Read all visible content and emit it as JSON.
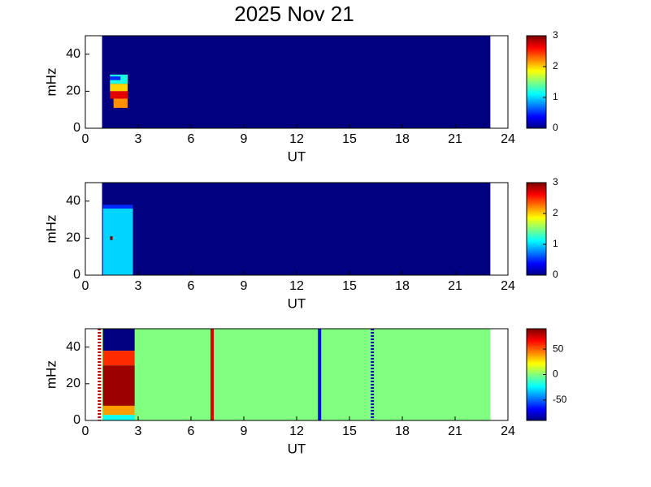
{
  "title": "2025 Nov 21",
  "chart_data": [
    {
      "type": "heatmap",
      "xlabel": "UT",
      "ylabel": "mHz",
      "xlim": [
        0,
        24
      ],
      "xticks": [
        0,
        3,
        6,
        9,
        12,
        15,
        18,
        21,
        24
      ],
      "ylim": [
        0,
        50
      ],
      "yticks": [
        0,
        20,
        40
      ],
      "clim": [
        0,
        3
      ],
      "cticks": [
        0,
        1,
        2,
        3
      ],
      "cells": [
        {
          "x": [
            0.95,
            23
          ],
          "y": [
            0,
            50
          ],
          "value": 0
        },
        {
          "x": [
            1.4,
            2.4
          ],
          "y": [
            24,
            29
          ],
          "value": 1.2
        },
        {
          "x": [
            1.4,
            2.0
          ],
          "y": [
            26,
            28
          ],
          "value": 0.5
        },
        {
          "x": [
            1.4,
            2.4
          ],
          "y": [
            20,
            24
          ],
          "value": 2.0
        },
        {
          "x": [
            1.4,
            2.4
          ],
          "y": [
            16,
            20
          ],
          "value": 2.7
        },
        {
          "x": [
            1.6,
            2.4
          ],
          "y": [
            11,
            16
          ],
          "value": 2.2
        }
      ]
    },
    {
      "type": "heatmap",
      "xlabel": "UT",
      "ylabel": "mHz",
      "xlim": [
        0,
        24
      ],
      "xticks": [
        0,
        3,
        6,
        9,
        12,
        15,
        18,
        21,
        24
      ],
      "ylim": [
        0,
        50
      ],
      "yticks": [
        0,
        20,
        40
      ],
      "clim": [
        0,
        3
      ],
      "cticks": [
        0,
        1,
        2,
        3
      ],
      "cells": [
        {
          "x": [
            0.95,
            23
          ],
          "y": [
            0,
            50
          ],
          "value": 0
        },
        {
          "x": [
            1.0,
            2.7
          ],
          "y": [
            36,
            38
          ],
          "value": 0.5
        },
        {
          "x": [
            1.0,
            2.7
          ],
          "y": [
            0,
            36
          ],
          "value": 1.0
        },
        {
          "x": [
            1.4,
            1.55
          ],
          "y": [
            19,
            21
          ],
          "value": 3
        }
      ]
    },
    {
      "type": "heatmap",
      "xlabel": "UT",
      "ylabel": "mHz",
      "xlim": [
        0,
        24
      ],
      "xticks": [
        0,
        3,
        6,
        9,
        12,
        15,
        18,
        21,
        24
      ],
      "ylim": [
        0,
        50
      ],
      "yticks": [
        0,
        20,
        40
      ],
      "clim": [
        -90,
        90
      ],
      "cticks": [
        -50,
        0,
        50
      ],
      "cells": [
        {
          "x": [
            0.95,
            23
          ],
          "y": [
            0,
            50
          ],
          "value": 0
        },
        {
          "x": [
            1.0,
            2.8
          ],
          "y": [
            38,
            50
          ],
          "value": -90
        },
        {
          "x": [
            1.0,
            2.8
          ],
          "y": [
            30,
            38
          ],
          "value": 60
        },
        {
          "x": [
            1.0,
            2.8
          ],
          "y": [
            8,
            30
          ],
          "value": 85
        },
        {
          "x": [
            1.0,
            2.8
          ],
          "y": [
            3,
            8
          ],
          "value": 40
        },
        {
          "x": [
            1.0,
            2.8
          ],
          "y": [
            0,
            3
          ],
          "value": -20
        }
      ],
      "vlines": [
        {
          "x": 0.8,
          "color": "#c00000",
          "style": "dotted"
        },
        {
          "x": 7.2,
          "color": "#e00000",
          "style": "solid"
        },
        {
          "x": 13.3,
          "color": "#0010e0",
          "style": "solid"
        },
        {
          "x": 16.3,
          "color": "#0010c0",
          "style": "dotted"
        }
      ]
    }
  ]
}
